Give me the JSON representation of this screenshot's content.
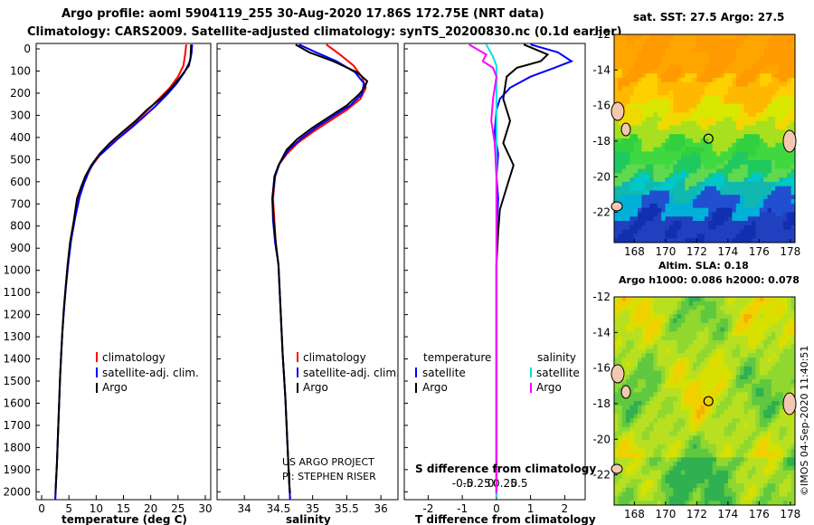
{
  "header": {
    "line1": "Argo profile: aoml 5904119_255 30-Aug-2020 17.86S 172.75E (NRT data)",
    "line2": "Climatology: CARS2009. Satellite-adjusted climatology: synTS_20200830.nc (0.1d earlier)"
  },
  "chart_data": [
    {
      "type": "line",
      "id": "temperature",
      "xlabel": "temperature (deg C)",
      "xlim": [
        -1,
        31
      ],
      "xticks": [
        0,
        5,
        10,
        15,
        20,
        25,
        30
      ],
      "xtick_labels": [
        "0",
        "5",
        "10",
        "15",
        "20",
        "25",
        "30"
      ],
      "ylim": [
        0,
        2060
      ],
      "yticks": [
        0,
        100,
        200,
        300,
        400,
        500,
        600,
        700,
        800,
        900,
        1000,
        1100,
        1200,
        1300,
        1400,
        1500,
        1600,
        1700,
        1800,
        1900,
        2000
      ],
      "legend": [
        "climatology",
        "satellite-adj. clim.",
        "Argo"
      ],
      "series": [
        {
          "name": "climatology",
          "color": "#ff0000",
          "points": [
            [
              26.5,
              5
            ],
            [
              26.3,
              50
            ],
            [
              26.0,
              100
            ],
            [
              25.0,
              150
            ],
            [
              23.5,
              200
            ],
            [
              21.5,
              250
            ],
            [
              19.5,
              300
            ],
            [
              17.5,
              350
            ],
            [
              15.3,
              400
            ],
            [
              13.0,
              450
            ],
            [
              10.8,
              500
            ],
            [
              9.3,
              550
            ],
            [
              8.2,
              600
            ],
            [
              7.4,
              650
            ],
            [
              6.7,
              700
            ],
            [
              6.0,
              800
            ],
            [
              5.3,
              900
            ],
            [
              4.8,
              1000
            ],
            [
              4.4,
              1100
            ],
            [
              4.1,
              1200
            ],
            [
              3.8,
              1300
            ],
            [
              3.6,
              1400
            ],
            [
              3.4,
              1500
            ],
            [
              3.25,
              1600
            ],
            [
              3.1,
              1700
            ],
            [
              2.95,
              1800
            ],
            [
              2.8,
              1900
            ],
            [
              2.6,
              2000
            ],
            [
              2.5,
              2060
            ]
          ]
        },
        {
          "name": "satellite-adj. clim.",
          "color": "#0000ff",
          "points": [
            [
              27.6,
              5
            ],
            [
              27.5,
              40
            ],
            [
              27.2,
              80
            ],
            [
              26.2,
              130
            ],
            [
              24.8,
              180
            ],
            [
              23.0,
              230
            ],
            [
              21.0,
              280
            ],
            [
              18.8,
              330
            ],
            [
              16.5,
              380
            ],
            [
              14.0,
              430
            ],
            [
              11.8,
              480
            ],
            [
              10.0,
              520
            ],
            [
              8.8,
              570
            ],
            [
              7.8,
              630
            ],
            [
              7.0,
              690
            ],
            [
              6.2,
              780
            ],
            [
              5.4,
              890
            ],
            [
              4.9,
              990
            ],
            [
              4.45,
              1100
            ],
            [
              4.1,
              1200
            ],
            [
              3.8,
              1300
            ],
            [
              3.6,
              1400
            ],
            [
              3.4,
              1500
            ],
            [
              3.25,
              1600
            ],
            [
              3.1,
              1700
            ],
            [
              2.95,
              1800
            ],
            [
              2.8,
              1900
            ],
            [
              2.6,
              2000
            ],
            [
              2.5,
              2060
            ]
          ]
        },
        {
          "name": "Argo",
          "color": "#000000",
          "points": [
            [
              27.4,
              5
            ],
            [
              27.3,
              60
            ],
            [
              27.0,
              100
            ],
            [
              25.5,
              150
            ],
            [
              23.8,
              200
            ],
            [
              21.8,
              250
            ],
            [
              19.3,
              300
            ],
            [
              17.2,
              350
            ],
            [
              14.8,
              400
            ],
            [
              12.5,
              450
            ],
            [
              10.6,
              500
            ],
            [
              9.1,
              550
            ],
            [
              8.0,
              600
            ],
            [
              7.2,
              650
            ],
            [
              6.5,
              700
            ],
            [
              5.9,
              800
            ],
            [
              5.2,
              900
            ],
            [
              4.75,
              1000
            ],
            [
              4.4,
              1100
            ],
            [
              4.05,
              1200
            ],
            [
              3.8,
              1300
            ],
            [
              3.6,
              1400
            ],
            [
              3.4,
              1500
            ],
            [
              3.25,
              1600
            ],
            [
              3.1,
              1700
            ],
            [
              2.95,
              1800
            ],
            [
              2.8,
              1900
            ],
            [
              2.6,
              2000
            ],
            [
              2.55,
              2030
            ]
          ]
        }
      ]
    },
    {
      "type": "line",
      "id": "salinity",
      "xlabel": "salinity",
      "xlim": [
        33.6,
        36.25
      ],
      "xticks": [
        34,
        34.5,
        35,
        35.5,
        36
      ],
      "xtick_labels": [
        "34",
        "34.5",
        "35",
        "35.5",
        "36"
      ],
      "ylim": [
        0,
        2060
      ],
      "legend": [
        "climatology",
        "satellite-adj. clim.",
        "Argo"
      ],
      "attribution": [
        "US ARGO PROJECT",
        "PI: STEPHEN RISER"
      ],
      "series": [
        {
          "name": "climatology",
          "color": "#ff0000",
          "points": [
            [
              35.2,
              5
            ],
            [
              35.4,
              50
            ],
            [
              35.6,
              100
            ],
            [
              35.72,
              150
            ],
            [
              35.78,
              200
            ],
            [
              35.7,
              250
            ],
            [
              35.5,
              300
            ],
            [
              35.25,
              350
            ],
            [
              35.0,
              400
            ],
            [
              34.78,
              450
            ],
            [
              34.62,
              500
            ],
            [
              34.5,
              550
            ],
            [
              34.45,
              600
            ],
            [
              34.42,
              700
            ],
            [
              34.44,
              800
            ],
            [
              34.46,
              900
            ],
            [
              34.5,
              1000
            ],
            [
              34.53,
              1200
            ],
            [
              34.56,
              1400
            ],
            [
              34.6,
              1600
            ],
            [
              34.63,
              1800
            ],
            [
              34.66,
              2000
            ],
            [
              34.67,
              2060
            ]
          ]
        },
        {
          "name": "satellite-adj. clim.",
          "color": "#0000ff",
          "points": [
            [
              34.8,
              5
            ],
            [
              35.05,
              40
            ],
            [
              35.35,
              80
            ],
            [
              35.62,
              130
            ],
            [
              35.75,
              180
            ],
            [
              35.72,
              230
            ],
            [
              35.55,
              280
            ],
            [
              35.3,
              330
            ],
            [
              35.05,
              380
            ],
            [
              34.83,
              430
            ],
            [
              34.65,
              480
            ],
            [
              34.52,
              540
            ],
            [
              34.45,
              600
            ],
            [
              34.41,
              700
            ],
            [
              34.42,
              800
            ],
            [
              34.45,
              900
            ],
            [
              34.5,
              1000
            ],
            [
              34.53,
              1200
            ],
            [
              34.56,
              1400
            ],
            [
              34.6,
              1600
            ],
            [
              34.63,
              1800
            ],
            [
              34.66,
              2000
            ],
            [
              34.67,
              2060
            ]
          ]
        },
        {
          "name": "Argo",
          "color": "#000000",
          "points": [
            [
              34.75,
              5
            ],
            [
              34.95,
              40
            ],
            [
              35.3,
              80
            ],
            [
              35.65,
              130
            ],
            [
              35.8,
              170
            ],
            [
              35.76,
              200
            ],
            [
              35.68,
              230
            ],
            [
              35.5,
              280
            ],
            [
              35.25,
              330
            ],
            [
              35.0,
              380
            ],
            [
              34.78,
              430
            ],
            [
              34.62,
              480
            ],
            [
              34.5,
              550
            ],
            [
              34.44,
              600
            ],
            [
              34.41,
              700
            ],
            [
              34.43,
              800
            ],
            [
              34.46,
              900
            ],
            [
              34.5,
              1000
            ],
            [
              34.53,
              1200
            ],
            [
              34.56,
              1400
            ],
            [
              34.6,
              1600
            ],
            [
              34.63,
              1800
            ],
            [
              34.66,
              2000
            ],
            [
              34.67,
              2030
            ]
          ]
        }
      ]
    },
    {
      "type": "line",
      "id": "difference",
      "xlabel": "T difference from climatology",
      "xlim": [
        -2.7,
        2.6
      ],
      "xticks": [
        -2,
        -1,
        0,
        1,
        2
      ],
      "xtick_labels": [
        "-2",
        "-1",
        "0",
        "1",
        "2"
      ],
      "top_xticks": [
        -0.5,
        -0.25,
        0,
        0.25,
        0.5
      ],
      "top_xtick_labels": [
        "-0.5",
        "-0.25",
        "0",
        "0.25",
        "0.5"
      ],
      "top_xlabel": "S difference from climatology",
      "ylim": [
        0,
        2060
      ],
      "legend_temperature_title": "temperature",
      "legend_salinity_title": "salinity",
      "legend": [
        "satellite",
        "Argo",
        "satellite",
        "Argo"
      ],
      "series": [
        {
          "name": "T satellite",
          "color": "#0000ff",
          "points": [
            [
              1.0,
              5
            ],
            [
              1.8,
              40
            ],
            [
              2.2,
              80
            ],
            [
              1.7,
              110
            ],
            [
              1.0,
              150
            ],
            [
              0.4,
              200
            ],
            [
              0.1,
              250
            ],
            [
              0.0,
              300
            ],
            [
              -0.05,
              400
            ],
            [
              0.05,
              500
            ],
            [
              0.0,
              600
            ],
            [
              0.05,
              700
            ],
            [
              0.02,
              800
            ],
            [
              0.0,
              1000
            ],
            [
              0.0,
              2050
            ]
          ]
        },
        {
          "name": "T Argo",
          "color": "#000000",
          "points": [
            [
              0.8,
              5
            ],
            [
              1.5,
              50
            ],
            [
              1.3,
              80
            ],
            [
              0.6,
              110
            ],
            [
              0.3,
              150
            ],
            [
              0.2,
              250
            ],
            [
              0.4,
              350
            ],
            [
              0.2,
              450
            ],
            [
              0.5,
              550
            ],
            [
              0.3,
              650
            ],
            [
              0.1,
              750
            ],
            [
              0.05,
              850
            ],
            [
              0.0,
              1000
            ],
            [
              0.0,
              2030
            ]
          ]
        },
        {
          "name": "S satellite",
          "color": "#00e0e0",
          "points": [
            [
              -0.3,
              5
            ],
            [
              -0.1,
              60
            ],
            [
              0.0,
              100
            ],
            [
              0.0,
              300
            ],
            [
              0.0,
              2050
            ]
          ]
        },
        {
          "name": "S Argo",
          "color": "#ff00ff",
          "points": [
            [
              -0.8,
              5
            ],
            [
              -0.3,
              50
            ],
            [
              -0.4,
              80
            ],
            [
              -0.1,
              110
            ],
            [
              0.0,
              150
            ],
            [
              -0.1,
              250
            ],
            [
              -0.15,
              350
            ],
            [
              -0.05,
              450
            ],
            [
              0.0,
              600
            ],
            [
              0.0,
              2030
            ]
          ]
        }
      ]
    },
    {
      "type": "heatmap",
      "id": "sst-map",
      "title": "sat. SST: 27.5 Argo: 27.5",
      "xlim": [
        166.7,
        178.3
      ],
      "ylim": [
        -23.7,
        -12
      ],
      "xticks": [
        168,
        170,
        172,
        174,
        176,
        178
      ],
      "yticks": [
        -12,
        -14,
        -16,
        -18,
        -20,
        -22
      ],
      "argo_position": {
        "lon": 172.75,
        "lat": -17.86
      }
    },
    {
      "type": "heatmap",
      "id": "sla-map",
      "title1": "Altim. SLA: 0.18",
      "title2": "Argo h1000: 0.086 h2000: 0.078",
      "xlim": [
        166.7,
        178.3
      ],
      "ylim": [
        -23.7,
        -12
      ],
      "xticks": [
        168,
        170,
        172,
        174,
        176,
        178
      ],
      "yticks": [
        -12,
        -14,
        -16,
        -18,
        -20,
        -22
      ],
      "argo_position": {
        "lon": 172.75,
        "lat": -17.86
      }
    }
  ],
  "credit": "©IMOS 04-Sep-2020 11:40:51"
}
